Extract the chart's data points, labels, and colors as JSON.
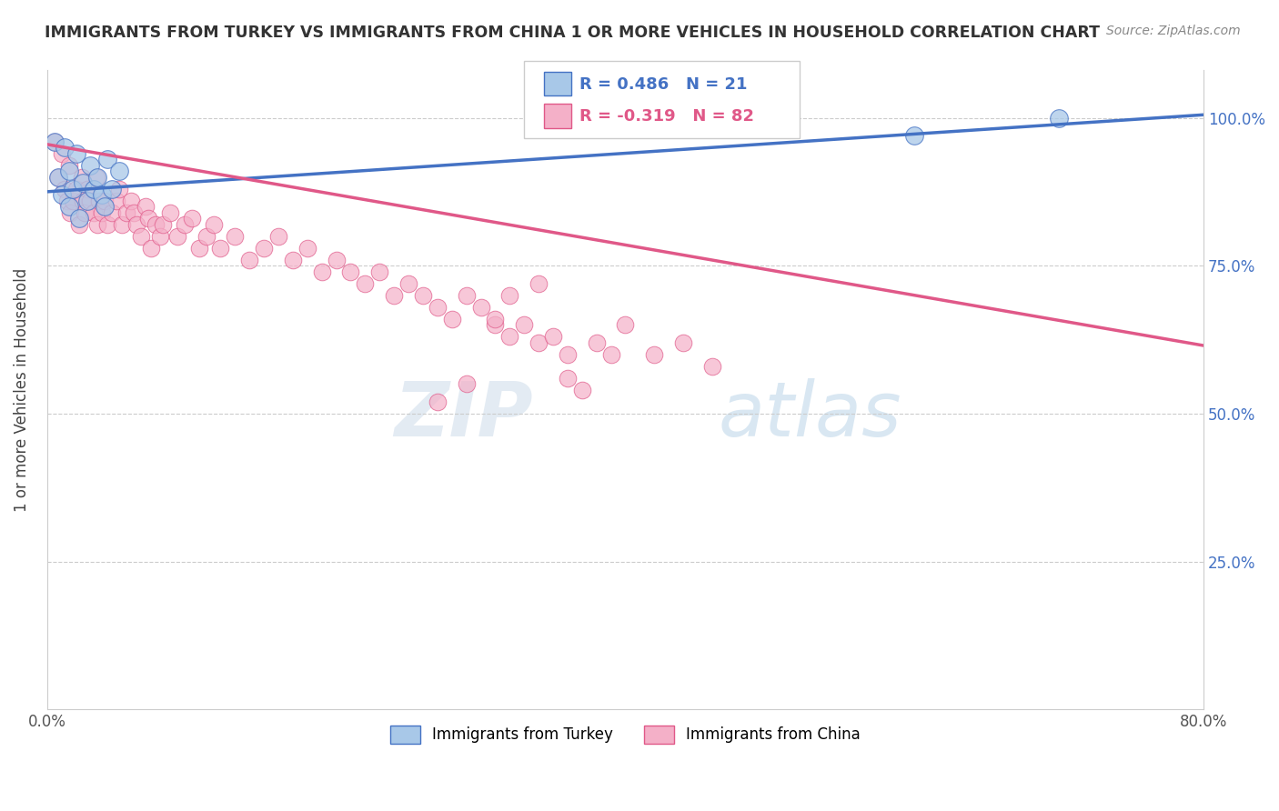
{
  "title": "IMMIGRANTS FROM TURKEY VS IMMIGRANTS FROM CHINA 1 OR MORE VEHICLES IN HOUSEHOLD CORRELATION CHART",
  "source": "Source: ZipAtlas.com",
  "ylabel": "1 or more Vehicles in Household",
  "legend_label_turkey": "Immigrants from Turkey",
  "legend_label_china": "Immigrants from China",
  "R_turkey": 0.486,
  "N_turkey": 21,
  "R_china": -0.319,
  "N_china": 82,
  "xlim": [
    0.0,
    0.8
  ],
  "ylim": [
    0.0,
    1.08
  ],
  "x_ticks": [
    0.0,
    0.1,
    0.2,
    0.3,
    0.4,
    0.5,
    0.6,
    0.7,
    0.8
  ],
  "y_ticks": [
    0.0,
    0.25,
    0.5,
    0.75,
    1.0
  ],
  "y_tick_labels_right": [
    "",
    "25.0%",
    "50.0%",
    "75.0%",
    "100.0%"
  ],
  "color_turkey": "#a8c8e8",
  "color_china": "#f4b0c8",
  "line_color_turkey": "#4472c4",
  "line_color_china": "#e05888",
  "background_color": "#ffffff",
  "watermark_zip": "ZIP",
  "watermark_atlas": "atlas",
  "turkey_x": [
    0.005,
    0.008,
    0.01,
    0.012,
    0.015,
    0.015,
    0.018,
    0.02,
    0.022,
    0.025,
    0.028,
    0.03,
    0.032,
    0.035,
    0.038,
    0.04,
    0.042,
    0.045,
    0.05,
    0.6,
    0.7
  ],
  "turkey_y": [
    0.96,
    0.9,
    0.87,
    0.95,
    0.91,
    0.85,
    0.88,
    0.94,
    0.83,
    0.89,
    0.86,
    0.92,
    0.88,
    0.9,
    0.87,
    0.85,
    0.93,
    0.88,
    0.91,
    0.97,
    1.0
  ],
  "china_x": [
    0.005,
    0.008,
    0.01,
    0.012,
    0.014,
    0.015,
    0.016,
    0.018,
    0.02,
    0.022,
    0.024,
    0.025,
    0.026,
    0.028,
    0.03,
    0.032,
    0.034,
    0.035,
    0.036,
    0.038,
    0.04,
    0.042,
    0.045,
    0.048,
    0.05,
    0.052,
    0.055,
    0.058,
    0.06,
    0.062,
    0.065,
    0.068,
    0.07,
    0.072,
    0.075,
    0.078,
    0.08,
    0.085,
    0.09,
    0.095,
    0.1,
    0.105,
    0.11,
    0.115,
    0.12,
    0.13,
    0.14,
    0.15,
    0.16,
    0.17,
    0.18,
    0.19,
    0.2,
    0.21,
    0.22,
    0.23,
    0.24,
    0.25,
    0.26,
    0.27,
    0.28,
    0.29,
    0.3,
    0.31,
    0.32,
    0.33,
    0.34,
    0.35,
    0.36,
    0.38,
    0.39,
    0.4,
    0.42,
    0.44,
    0.46,
    0.36,
    0.37,
    0.34,
    0.32,
    0.31,
    0.29,
    0.27
  ],
  "china_y": [
    0.96,
    0.9,
    0.94,
    0.88,
    0.86,
    0.92,
    0.84,
    0.86,
    0.88,
    0.82,
    0.9,
    0.86,
    0.84,
    0.88,
    0.86,
    0.84,
    0.9,
    0.82,
    0.86,
    0.84,
    0.86,
    0.82,
    0.84,
    0.86,
    0.88,
    0.82,
    0.84,
    0.86,
    0.84,
    0.82,
    0.8,
    0.85,
    0.83,
    0.78,
    0.82,
    0.8,
    0.82,
    0.84,
    0.8,
    0.82,
    0.83,
    0.78,
    0.8,
    0.82,
    0.78,
    0.8,
    0.76,
    0.78,
    0.8,
    0.76,
    0.78,
    0.74,
    0.76,
    0.74,
    0.72,
    0.74,
    0.7,
    0.72,
    0.7,
    0.68,
    0.66,
    0.7,
    0.68,
    0.65,
    0.63,
    0.65,
    0.62,
    0.63,
    0.6,
    0.62,
    0.6,
    0.65,
    0.6,
    0.62,
    0.58,
    0.56,
    0.54,
    0.72,
    0.7,
    0.66,
    0.55,
    0.52
  ]
}
